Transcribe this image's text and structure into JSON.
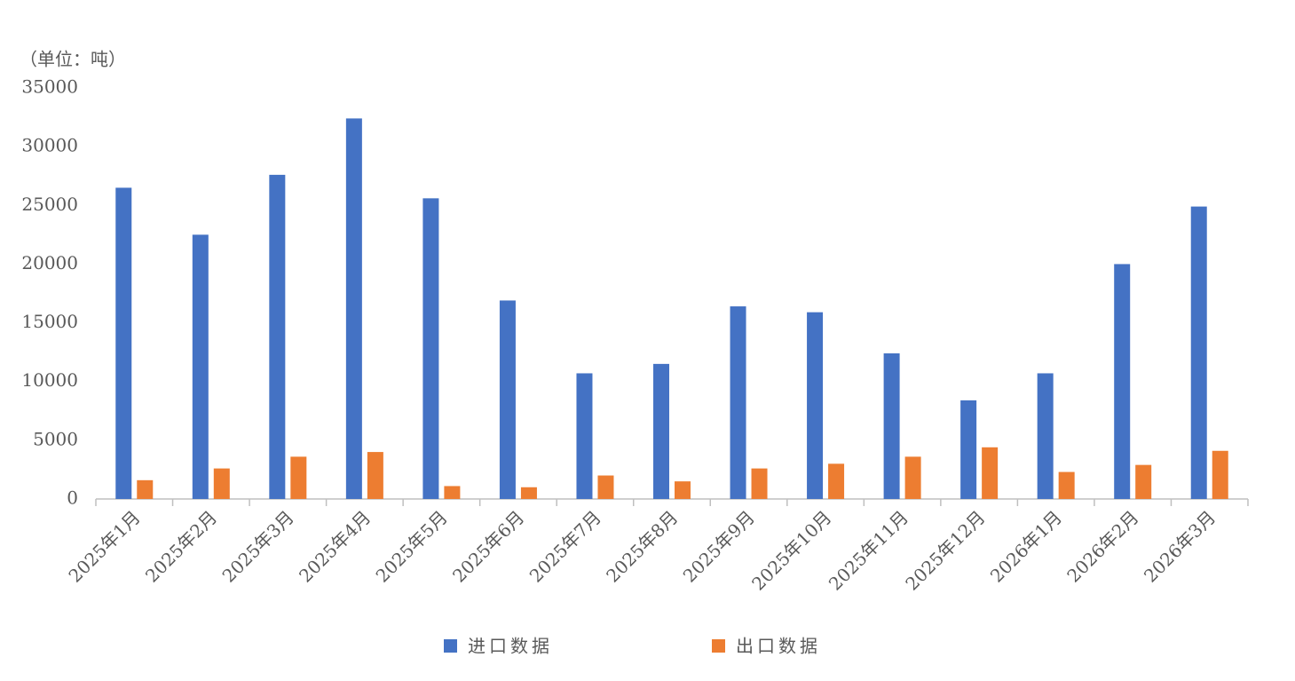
{
  "chart_data": {
    "type": "bar",
    "unit_label": "（单位：吨）",
    "categories": [
      "2025年1月",
      "2025年2月",
      "2025年3月",
      "2025年4月",
      "2025年5月",
      "2025年6月",
      "2025年7月",
      "2025年8月",
      "2025年9月",
      "2025年10月",
      "2025年11月",
      "2025年12月",
      "2026年1月",
      "2026年2月",
      "2026年3月"
    ],
    "series": [
      {
        "name": "进口数据",
        "color": "#4472c4",
        "values": [
          26500,
          22500,
          27600,
          32400,
          25600,
          16900,
          10700,
          11500,
          16400,
          15900,
          12400,
          8400,
          10700,
          20000,
          24900
        ]
      },
      {
        "name": "出口数据",
        "color": "#ed7d31",
        "values": [
          1600,
          2600,
          3600,
          4000,
          1100,
          1000,
          2000,
          1500,
          2600,
          3000,
          3600,
          4400,
          2300,
          2900,
          4100
        ]
      }
    ],
    "ylim": [
      0,
      35000
    ],
    "yticks": [
      0,
      5000,
      10000,
      15000,
      20000,
      25000,
      30000,
      35000
    ],
    "grid": false,
    "legend": "bottom"
  }
}
